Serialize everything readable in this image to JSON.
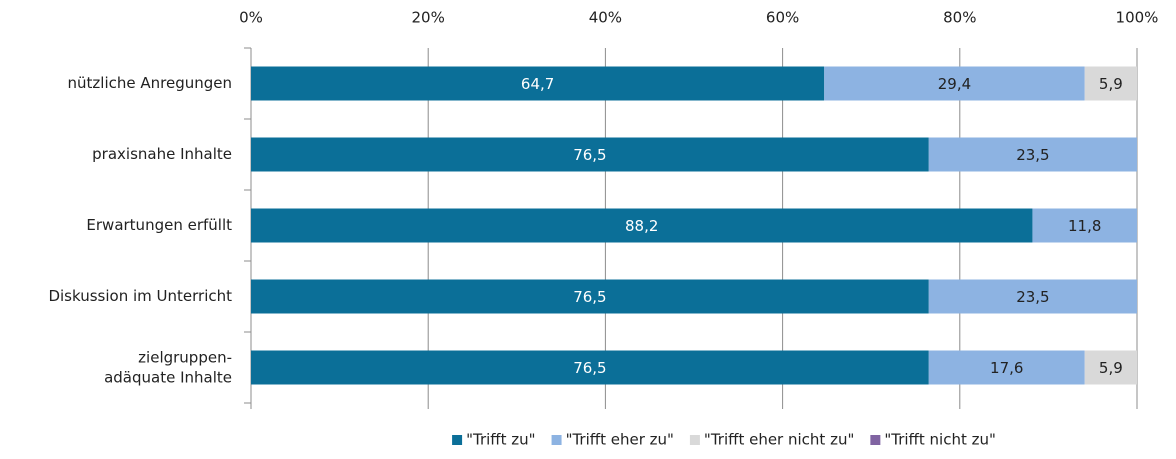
{
  "chart_data": {
    "type": "stacked_barh",
    "categories": [
      "nützliche Anregungen",
      "praxisnahe Inhalte",
      "Erwartungen erfüllt",
      "Diskussion im Unterricht",
      "zielgruppen-adäquate Inhalte"
    ],
    "series": [
      {
        "name": "\"Trifft zu\"",
        "color": "#0b6f98",
        "label_color": "#ffffff",
        "values": [
          64.7,
          76.5,
          88.2,
          76.5,
          76.5
        ],
        "value_labels": [
          "64,7",
          "76,5",
          "88,2",
          "76,5",
          "76,5"
        ]
      },
      {
        "name": "\"Trifft eher zu\"",
        "color": "#8db3e2",
        "label_color": "#222222",
        "values": [
          29.4,
          23.5,
          11.8,
          23.5,
          17.6
        ],
        "value_labels": [
          "29,4",
          "23,5",
          "11,8",
          "23,5",
          "17,6"
        ]
      },
      {
        "name": "\"Trifft eher nicht zu\"",
        "color": "#d9d9d9",
        "label_color": "#222222",
        "values": [
          5.9,
          0,
          0,
          0,
          5.9
        ],
        "value_labels": [
          "5,9",
          null,
          null,
          null,
          "5,9"
        ]
      },
      {
        "name": "\"Trifft nicht zu\"",
        "color": "#8064a2",
        "label_color": "#222222",
        "values": [
          0,
          0,
          0,
          0,
          0
        ],
        "value_labels": [
          null,
          null,
          null,
          null,
          null
        ]
      }
    ],
    "xlim": [
      0,
      100
    ],
    "xticks": [
      {
        "value": 0,
        "label": "0%"
      },
      {
        "value": 20,
        "label": "20%"
      },
      {
        "value": 40,
        "label": "40%"
      },
      {
        "value": 60,
        "label": "60%"
      },
      {
        "value": 80,
        "label": "80%"
      },
      {
        "value": 100,
        "label": "100%"
      }
    ],
    "grid": true,
    "legend": "bottom"
  }
}
